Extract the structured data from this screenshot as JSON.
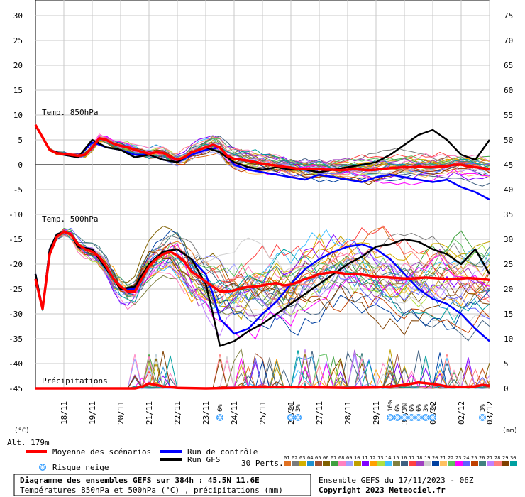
{
  "chart_data": {
    "type": "line",
    "title": "Diagramme des ensembles GEFS sur 384h : 45.5N 11.6E",
    "subtitle": "Températures 850hPa et 500hPa (°C) , précipitations (mm)",
    "run_info": "Ensemble GEFS du 17/11/2023 - 06Z",
    "copyright": "Copyright 2023 Meteociel.fr",
    "altitude": "Alt. 179m",
    "left_unit": "(°C)",
    "right_unit": "(mm)",
    "left_axis": {
      "ylim": [
        -45,
        30
      ],
      "ticks": [
        "30",
        "25",
        "20",
        "15",
        "10",
        "5",
        "0",
        "-5",
        "-10",
        "-15",
        "-20",
        "-25",
        "-30",
        "-35",
        "-40",
        "-45"
      ]
    },
    "right_axis": {
      "ylim": [
        0,
        75
      ],
      "ticks": [
        "75",
        "70",
        "65",
        "60",
        "55",
        "50",
        "45",
        "40",
        "35",
        "30",
        "25",
        "20",
        "15",
        "10",
        "5",
        "0"
      ]
    },
    "x_ticks": [
      "18/11",
      "19/11",
      "20/11",
      "21/11",
      "22/11",
      "23/11",
      "24/11",
      "25/11",
      "26/11",
      "27/11",
      "28/11",
      "29/11",
      "30/11",
      "01/12",
      "02/12",
      "03/12"
    ],
    "labels": {
      "t850": "Temp. 850hPa",
      "t500": "Temp. 500hPa",
      "precip": "Précipitations"
    },
    "legend": {
      "mean": "Moyenne des scénarios",
      "control": "Run de contrôle",
      "gfs": "Run GFS",
      "snow": "Risque neige",
      "perts": "30 Perts."
    },
    "colors": {
      "mean": "#ff0000",
      "control": "#0000ff",
      "gfs": "#000000",
      "snow": "#3aa0ff"
    },
    "pert_colors": [
      "#e07020",
      "#7a7a7a",
      "#d4b000",
      "#2090d0",
      "#a05030",
      "#806000",
      "#40a040",
      "#ff80c0",
      "#a0a0ff",
      "#c0a000",
      "#8000ff",
      "#ffa000",
      "#b0e040",
      "#40c0ff",
      "#808040",
      "#406080",
      "#ff4040",
      "#a040c0",
      "#d0d0d0",
      "#0040a0",
      "#ffc060",
      "#60c060",
      "#ff00ff",
      "#6060ff",
      "#c04000",
      "#408080",
      "#c080ff",
      "#ff8080",
      "#804000",
      "#00a0a0"
    ],
    "pert_numbers": [
      "01",
      "02",
      "03",
      "04",
      "05",
      "06",
      "07",
      "08",
      "09",
      "10",
      "11",
      "12",
      "13",
      "14",
      "15",
      "16",
      "17",
      "18",
      "19",
      "20",
      "21",
      "22",
      "23",
      "24",
      "25",
      "26",
      "27",
      "28",
      "29",
      "30"
    ],
    "x_hours": [
      0,
      384
    ],
    "series": [
      {
        "name": "Moyenne des scénarios",
        "level": "850hPa",
        "x": [
          0,
          6,
          12,
          18,
          24,
          30,
          36,
          42,
          48,
          54,
          60,
          66,
          72,
          78,
          84,
          90,
          96,
          102,
          108,
          114,
          120,
          126,
          132,
          138,
          144,
          150,
          156,
          162,
          168,
          174,
          180,
          186,
          192,
          198,
          204,
          210,
          216,
          222,
          228,
          234,
          240,
          246,
          252,
          258,
          264,
          270,
          276,
          282,
          288,
          294,
          300,
          306,
          312,
          318,
          324,
          330,
          336,
          342,
          348,
          354,
          360,
          366,
          372,
          378,
          384
        ],
        "y": [
          8,
          5.5,
          3,
          2.3,
          2.2,
          2,
          1.8,
          2,
          3.5,
          5.3,
          5,
          4.2,
          3.8,
          3.5,
          3,
          2.6,
          2.2,
          2.5,
          2.4,
          1.6,
          1,
          1.5,
          2.5,
          3,
          3.5,
          4,
          3.5,
          1.8,
          1.2,
          1,
          0.8,
          0.5,
          0.2,
          0,
          -0.2,
          -0.4,
          -0.6,
          -0.8,
          -0.9,
          -0.8,
          -0.9,
          -1,
          -1,
          -1.1,
          -1,
          -0.9,
          -1,
          -1.1,
          -1,
          -0.8,
          -0.7,
          -0.6,
          -0.5,
          -0.5,
          -0.4,
          -0.5,
          -0.5,
          -0.4,
          -0.3,
          0,
          0,
          -0.3,
          -0.5,
          -0.7,
          -0.9
        ]
      },
      {
        "name": "Moyenne des scénarios",
        "level": "500hPa",
        "x": [
          0,
          6,
          12,
          18,
          24,
          30,
          36,
          42,
          48,
          54,
          60,
          66,
          72,
          78,
          84,
          90,
          96,
          102,
          108,
          114,
          120,
          126,
          132,
          138,
          144,
          150,
          156,
          162,
          168,
          174,
          180,
          186,
          192,
          198,
          204,
          210,
          216,
          222,
          228,
          234,
          240,
          246,
          252,
          258,
          264,
          270,
          276,
          282,
          288,
          294,
          300,
          306,
          312,
          318,
          324,
          330,
          336,
          342,
          348,
          354,
          360,
          366,
          372,
          378,
          384
        ],
        "y": [
          -23,
          -29,
          -18,
          -14.5,
          -13.5,
          -14,
          -16,
          -17,
          -17.5,
          -18.5,
          -20.5,
          -23,
          -24.5,
          -25.5,
          -25.5,
          -23,
          -20.5,
          -19,
          -18,
          -17.5,
          -18.3,
          -19.5,
          -21.5,
          -22.5,
          -23.5,
          -24.5,
          -25.5,
          -25.5,
          -25.3,
          -24.8,
          -24.6,
          -24.5,
          -24.3,
          -24,
          -23.8,
          -24.3,
          -24.1,
          -23.6,
          -23,
          -22.6,
          -22,
          -21.8,
          -21.6,
          -21.8,
          -22,
          -22,
          -22.1,
          -22.3,
          -22.6,
          -22.6,
          -22.7,
          -22.8,
          -22.9,
          -22.9,
          -22.8,
          -22.7,
          -22.8,
          -22.9,
          -23,
          -23,
          -22.9,
          -22.8,
          -22.9,
          -23,
          -23.2
        ]
      },
      {
        "name": "Moyenne des scénarios",
        "level": "precip",
        "x": [
          0,
          24,
          48,
          72,
          84,
          90,
          96,
          108,
          120,
          144,
          168,
          192,
          216,
          240,
          264,
          288,
          300,
          312,
          324,
          336,
          348,
          360,
          372,
          378,
          384
        ],
        "y": [
          0,
          0,
          0,
          0,
          0,
          0.3,
          1,
          0.4,
          0.1,
          0,
          0.1,
          0.3,
          0.3,
          0.2,
          0.1,
          0.2,
          0.4,
          0.7,
          1.2,
          0.9,
          0.4,
          0.3,
          0.4,
          0.7,
          0.5
        ]
      },
      {
        "name": "Run de contrôle",
        "level": "850hPa",
        "x": [
          0,
          12,
          24,
          36,
          48,
          60,
          72,
          84,
          96,
          108,
          120,
          132,
          144,
          156,
          168,
          180,
          192,
          204,
          216,
          228,
          240,
          252,
          264,
          276,
          288,
          300,
          312,
          324,
          336,
          348,
          360,
          372,
          384
        ],
        "y": [
          8,
          3,
          2,
          1.5,
          4.5,
          3.5,
          3,
          2,
          2,
          1,
          0.5,
          2,
          3,
          3.5,
          0,
          -1,
          -1.5,
          -2,
          -2.5,
          -3,
          -2,
          -2.5,
          -3,
          -3.5,
          -2.5,
          -2,
          -2.5,
          -3,
          -3.5,
          -3,
          -4.5,
          -5.5,
          -7
        ]
      },
      {
        "name": "Run de contrôle",
        "level": "500hPa",
        "x": [
          0,
          6,
          12,
          18,
          24,
          30,
          36,
          48,
          60,
          72,
          84,
          96,
          108,
          120,
          132,
          144,
          150,
          156,
          168,
          180,
          192,
          204,
          216,
          228,
          240,
          252,
          264,
          276,
          288,
          300,
          312,
          324,
          336,
          348,
          360,
          372,
          384
        ],
        "y": [
          -22,
          -29,
          -17,
          -14,
          -13.5,
          -14,
          -16.5,
          -17,
          -21,
          -25,
          -25,
          -20,
          -17.5,
          -17,
          -19,
          -22,
          -26,
          -31,
          -34,
          -33,
          -30,
          -27.5,
          -24,
          -21,
          -19,
          -17.5,
          -16.5,
          -16,
          -17,
          -19,
          -22,
          -25,
          -27,
          -28,
          -30,
          -33,
          -35.5
        ]
      },
      {
        "name": "Run GFS",
        "level": "850hPa",
        "x": [
          0,
          12,
          24,
          36,
          48,
          60,
          72,
          84,
          96,
          108,
          120,
          132,
          144,
          156,
          168,
          180,
          192,
          204,
          216,
          228,
          240,
          252,
          264,
          276,
          288,
          300,
          312,
          324,
          336,
          348,
          360,
          372,
          384
        ],
        "y": [
          8,
          3,
          2,
          1.5,
          5,
          3.5,
          3,
          1.5,
          2,
          1,
          0.5,
          2.5,
          3.5,
          2.5,
          0.5,
          -0.5,
          -1,
          -0.5,
          -1,
          -1,
          -1.5,
          -1,
          -0.5,
          0,
          0.5,
          2,
          4,
          6,
          7,
          5,
          2,
          1,
          5
        ]
      },
      {
        "name": "Run GFS",
        "level": "500hPa",
        "x": [
          0,
          6,
          12,
          18,
          24,
          30,
          36,
          48,
          60,
          72,
          84,
          96,
          108,
          120,
          132,
          144,
          150,
          156,
          168,
          180,
          192,
          204,
          216,
          228,
          240,
          252,
          264,
          276,
          288,
          300,
          312,
          324,
          336,
          348,
          360,
          372,
          384
        ],
        "y": [
          -22,
          -29,
          -17,
          -14,
          -13.5,
          -14,
          -16.5,
          -17,
          -21,
          -25,
          -24.5,
          -20,
          -17.5,
          -17,
          -19,
          -24,
          -30,
          -36.5,
          -35.5,
          -33.5,
          -32,
          -30,
          -28,
          -26,
          -24,
          -22,
          -20,
          -18.5,
          -16.5,
          -16,
          -15,
          -15.5,
          -17,
          -18,
          -20,
          -17,
          -22
        ]
      }
    ],
    "snow_risk": [
      {
        "hour": 156,
        "label": "6%"
      },
      {
        "hour": 216,
        "label": "3%"
      },
      {
        "hour": 222,
        "label": "3%"
      },
      {
        "hour": 300,
        "label": "10%"
      },
      {
        "hour": 306,
        "label": "6%"
      },
      {
        "hour": 312,
        "label": "3%"
      },
      {
        "hour": 318,
        "label": "6%"
      },
      {
        "hour": 324,
        "label": "6%"
      },
      {
        "hour": 330,
        "label": "3%"
      },
      {
        "hour": 336,
        "label": "3%"
      },
      {
        "hour": 378,
        "label": "3%"
      }
    ],
    "grid": true
  }
}
